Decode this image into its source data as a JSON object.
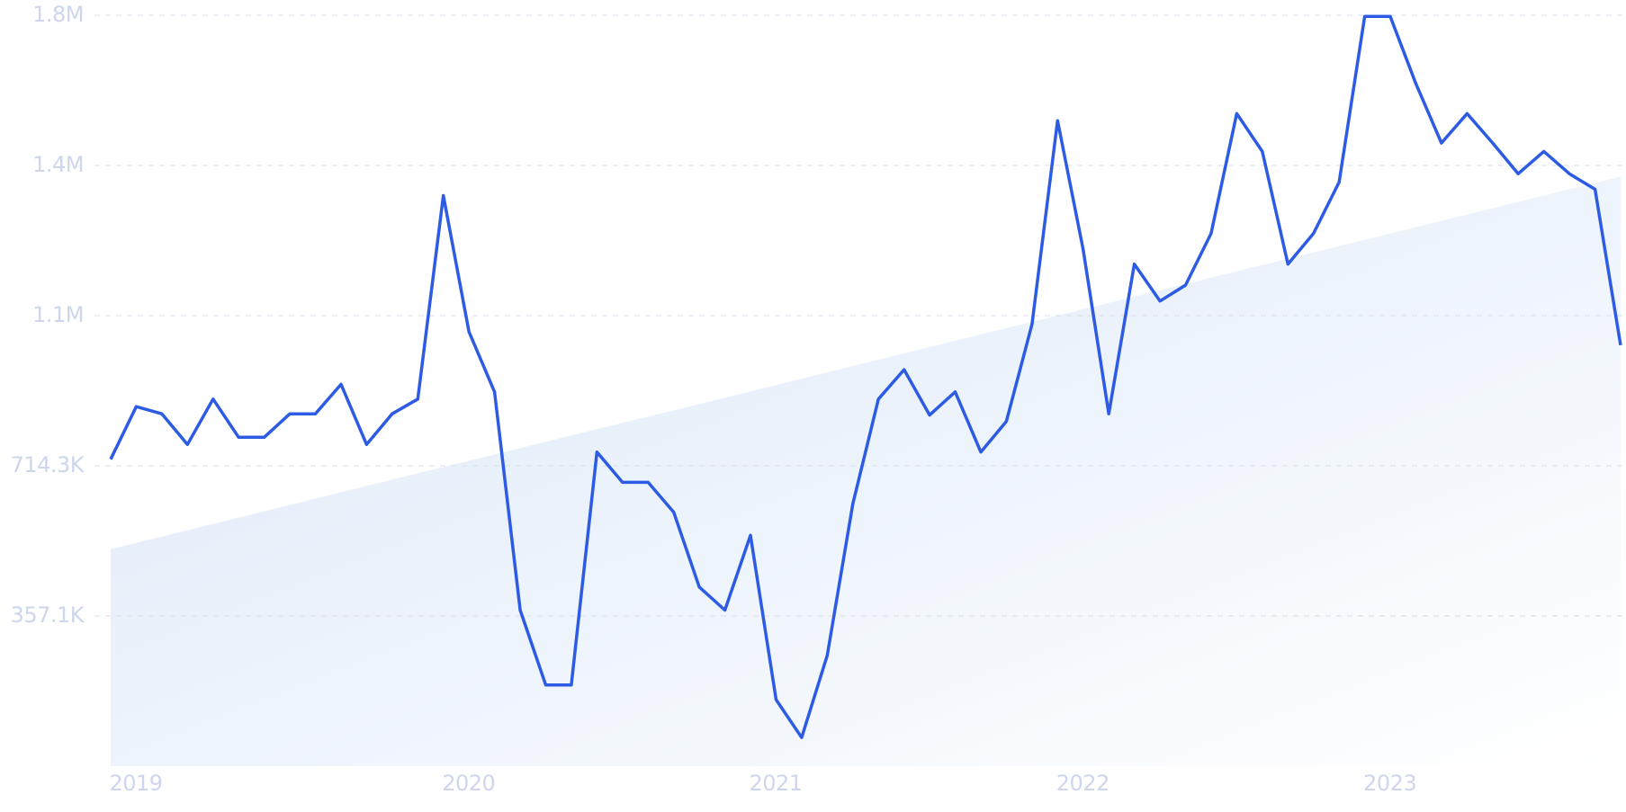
{
  "chart_data": {
    "type": "line",
    "categories": [
      "2019",
      null,
      null,
      null,
      null,
      null,
      null,
      null,
      null,
      null,
      null,
      null,
      null,
      "2020",
      null,
      null,
      null,
      null,
      null,
      null,
      null,
      null,
      null,
      null,
      null,
      "2021",
      null,
      null,
      null,
      null,
      null,
      null,
      null,
      null,
      null,
      null,
      null,
      "2022",
      null,
      null,
      null,
      null,
      null,
      null,
      null,
      null,
      null,
      null,
      null,
      "2023",
      null,
      null,
      null,
      null,
      null,
      null,
      null,
      null,
      null,
      null
    ],
    "values": [
      730000,
      855000,
      838000,
      765000,
      873000,
      782000,
      782000,
      838000,
      838000,
      908000,
      765000,
      838000,
      873000,
      1357000,
      1033000,
      890000,
      371000,
      193000,
      193000,
      747000,
      675000,
      675000,
      604000,
      426000,
      371000,
      549000,
      158000,
      68000,
      263000,
      624000,
      873000,
      943000,
      835000,
      890000,
      747000,
      820000,
      1051000,
      1535000,
      1229000,
      838000,
      1194000,
      1106000,
      1144000,
      1267000,
      1552000,
      1462000,
      1194000,
      1267000,
      1389000,
      1783000,
      1783000,
      1623000,
      1482000,
      1552000,
      1482000,
      1409000,
      1462000,
      1409000,
      1372000,
      1001000
    ],
    "color": "#2d5be3",
    "trend_values": [
      516000,
      1402000
    ],
    "ylim": [
      0,
      1785714
    ],
    "yticks": [
      {
        "value": 357143,
        "label": "357.1K"
      },
      {
        "value": 714286,
        "label": "714.3K"
      },
      {
        "value": 1071429,
        "label": "1.1M"
      },
      {
        "value": 1428571,
        "label": "1.4M"
      },
      {
        "value": 1785714,
        "label": "1.8M"
      }
    ],
    "grid": true
  }
}
